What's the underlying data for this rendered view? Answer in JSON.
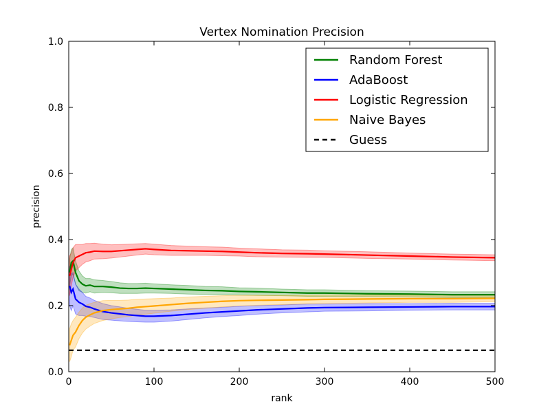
{
  "chart_data": {
    "type": "line",
    "title": "Vertex Nomination Precision",
    "xlabel": "rank",
    "ylabel": "precision",
    "xlim": [
      0,
      500
    ],
    "ylim": [
      0.0,
      1.0
    ],
    "xticks": [
      0,
      100,
      200,
      300,
      400,
      500
    ],
    "yticks": [
      0.0,
      0.2,
      0.4,
      0.6,
      0.8,
      1.0
    ],
    "xtick_labels": [
      "0",
      "100",
      "200",
      "300",
      "400",
      "500"
    ],
    "ytick_labels": [
      "0.0",
      "0.2",
      "0.4",
      "0.6",
      "0.8",
      "1.0"
    ],
    "grid": false,
    "legend_position": "top-right",
    "series": [
      {
        "name": "Random Forest",
        "color": "#008000",
        "band_color": "#008000",
        "points": [
          [
            1,
            0.3
          ],
          [
            3,
            0.33
          ],
          [
            5,
            0.335
          ],
          [
            8,
            0.3
          ],
          [
            12,
            0.275
          ],
          [
            16,
            0.265
          ],
          [
            20,
            0.26
          ],
          [
            25,
            0.262
          ],
          [
            30,
            0.258
          ],
          [
            40,
            0.258
          ],
          [
            50,
            0.256
          ],
          [
            60,
            0.253
          ],
          [
            70,
            0.252
          ],
          [
            80,
            0.252
          ],
          [
            90,
            0.253
          ],
          [
            100,
            0.252
          ],
          [
            120,
            0.25
          ],
          [
            140,
            0.248
          ],
          [
            160,
            0.246
          ],
          [
            180,
            0.245
          ],
          [
            200,
            0.243
          ],
          [
            220,
            0.242
          ],
          [
            250,
            0.24
          ],
          [
            280,
            0.238
          ],
          [
            300,
            0.238
          ],
          [
            350,
            0.236
          ],
          [
            400,
            0.235
          ],
          [
            450,
            0.233
          ],
          [
            500,
            0.233
          ]
        ],
        "band": [
          0.04,
          0.04,
          0.04,
          0.035,
          0.03,
          0.025,
          0.022,
          0.02,
          0.02,
          0.018,
          0.017,
          0.016,
          0.015,
          0.015,
          0.015,
          0.014,
          0.013,
          0.013,
          0.012,
          0.012,
          0.011,
          0.011,
          0.01,
          0.01,
          0.01,
          0.009,
          0.009,
          0.009,
          0.009
        ]
      },
      {
        "name": "AdaBoost",
        "color": "#0000ff",
        "band_color": "#0000ff",
        "points": [
          [
            1,
            0.26
          ],
          [
            3,
            0.24
          ],
          [
            5,
            0.25
          ],
          [
            8,
            0.22
          ],
          [
            12,
            0.21
          ],
          [
            16,
            0.205
          ],
          [
            20,
            0.198
          ],
          [
            25,
            0.195
          ],
          [
            30,
            0.19
          ],
          [
            40,
            0.182
          ],
          [
            50,
            0.178
          ],
          [
            60,
            0.175
          ],
          [
            70,
            0.172
          ],
          [
            80,
            0.17
          ],
          [
            90,
            0.168
          ],
          [
            100,
            0.168
          ],
          [
            120,
            0.17
          ],
          [
            140,
            0.174
          ],
          [
            160,
            0.178
          ],
          [
            180,
            0.181
          ],
          [
            200,
            0.184
          ],
          [
            220,
            0.187
          ],
          [
            250,
            0.19
          ],
          [
            280,
            0.193
          ],
          [
            300,
            0.194
          ],
          [
            350,
            0.195
          ],
          [
            400,
            0.196
          ],
          [
            450,
            0.197
          ],
          [
            500,
            0.197
          ]
        ],
        "band": [
          0.06,
          0.055,
          0.05,
          0.045,
          0.04,
          0.035,
          0.03,
          0.028,
          0.026,
          0.024,
          0.022,
          0.021,
          0.02,
          0.019,
          0.018,
          0.018,
          0.017,
          0.016,
          0.015,
          0.014,
          0.014,
          0.013,
          0.012,
          0.012,
          0.011,
          0.011,
          0.01,
          0.01,
          0.01
        ]
      },
      {
        "name": "Logistic Regression",
        "color": "#ff0000",
        "band_color": "#ff0000",
        "points": [
          [
            1,
            0.29
          ],
          [
            3,
            0.31
          ],
          [
            5,
            0.33
          ],
          [
            8,
            0.345
          ],
          [
            12,
            0.35
          ],
          [
            16,
            0.355
          ],
          [
            20,
            0.36
          ],
          [
            25,
            0.362
          ],
          [
            30,
            0.365
          ],
          [
            40,
            0.364
          ],
          [
            50,
            0.364
          ],
          [
            60,
            0.366
          ],
          [
            70,
            0.368
          ],
          [
            80,
            0.37
          ],
          [
            90,
            0.372
          ],
          [
            100,
            0.37
          ],
          [
            120,
            0.367
          ],
          [
            140,
            0.366
          ],
          [
            160,
            0.365
          ],
          [
            180,
            0.364
          ],
          [
            200,
            0.362
          ],
          [
            220,
            0.36
          ],
          [
            250,
            0.358
          ],
          [
            280,
            0.357
          ],
          [
            300,
            0.356
          ],
          [
            350,
            0.353
          ],
          [
            400,
            0.35
          ],
          [
            450,
            0.347
          ],
          [
            500,
            0.345
          ]
        ],
        "band": [
          0.06,
          0.05,
          0.045,
          0.04,
          0.035,
          0.03,
          0.028,
          0.026,
          0.024,
          0.022,
          0.02,
          0.019,
          0.018,
          0.017,
          0.016,
          0.016,
          0.015,
          0.014,
          0.013,
          0.013,
          0.012,
          0.012,
          0.011,
          0.011,
          0.01,
          0.01,
          0.009,
          0.009,
          0.009
        ]
      },
      {
        "name": "Naive Bayes",
        "color": "#ffa500",
        "band_color": "#ffa500",
        "points": [
          [
            1,
            0.08
          ],
          [
            3,
            0.095
          ],
          [
            5,
            0.11
          ],
          [
            8,
            0.12
          ],
          [
            12,
            0.14
          ],
          [
            16,
            0.155
          ],
          [
            20,
            0.165
          ],
          [
            25,
            0.172
          ],
          [
            30,
            0.178
          ],
          [
            40,
            0.185
          ],
          [
            50,
            0.188
          ],
          [
            60,
            0.19
          ],
          [
            70,
            0.192
          ],
          [
            80,
            0.195
          ],
          [
            90,
            0.197
          ],
          [
            100,
            0.199
          ],
          [
            120,
            0.203
          ],
          [
            140,
            0.207
          ],
          [
            160,
            0.21
          ],
          [
            180,
            0.213
          ],
          [
            200,
            0.215
          ],
          [
            220,
            0.216
          ],
          [
            250,
            0.217
          ],
          [
            280,
            0.218
          ],
          [
            300,
            0.219
          ],
          [
            350,
            0.22
          ],
          [
            400,
            0.221
          ],
          [
            450,
            0.221
          ],
          [
            500,
            0.222
          ]
        ],
        "band": [
          0.05,
          0.05,
          0.045,
          0.045,
          0.04,
          0.038,
          0.036,
          0.034,
          0.032,
          0.03,
          0.028,
          0.026,
          0.025,
          0.024,
          0.023,
          0.022,
          0.02,
          0.019,
          0.018,
          0.017,
          0.016,
          0.015,
          0.014,
          0.013,
          0.013,
          0.012,
          0.011,
          0.011,
          0.01
        ]
      },
      {
        "name": "Guess",
        "color": "#000000",
        "dashed": true,
        "points": [
          [
            0,
            0.065
          ],
          [
            500,
            0.065
          ]
        ]
      }
    ]
  }
}
